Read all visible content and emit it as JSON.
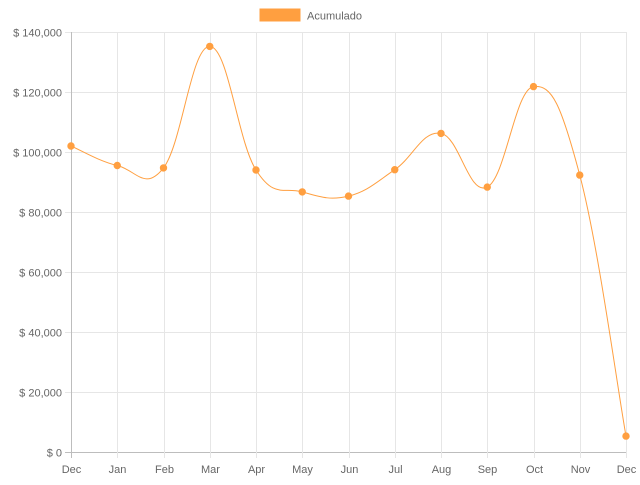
{
  "colors": {
    "series": "#ff9f40",
    "grid": "#e6e6e6",
    "text": "#666666"
  },
  "chart_data": {
    "type": "line",
    "title": "",
    "xlabel": "",
    "ylabel": "",
    "categories": [
      "Dec",
      "Jan",
      "Feb",
      "Mar",
      "Apr",
      "May",
      "Jun",
      "Jul",
      "Aug",
      "Sep",
      "Oct",
      "Nov",
      "Dec"
    ],
    "series": [
      {
        "name": "Acumulado",
        "color": "#ff9f40",
        "values": [
          102000,
          95500,
          94700,
          135200,
          94000,
          86700,
          85300,
          94100,
          106200,
          88300,
          121800,
          92300,
          5300
        ]
      }
    ],
    "ylim": [
      0,
      140000
    ],
    "y_ticks": [
      0,
      20000,
      40000,
      60000,
      80000,
      100000,
      120000,
      140000
    ],
    "y_tick_labels": [
      "$ 0",
      "$ 20,000",
      "$ 40,000",
      "$ 60,000",
      "$ 80,000",
      "$ 100,000",
      "$ 120,000",
      "$ 140,000"
    ],
    "grid": true,
    "legend_position": "top-center",
    "line_style": "smooth"
  }
}
